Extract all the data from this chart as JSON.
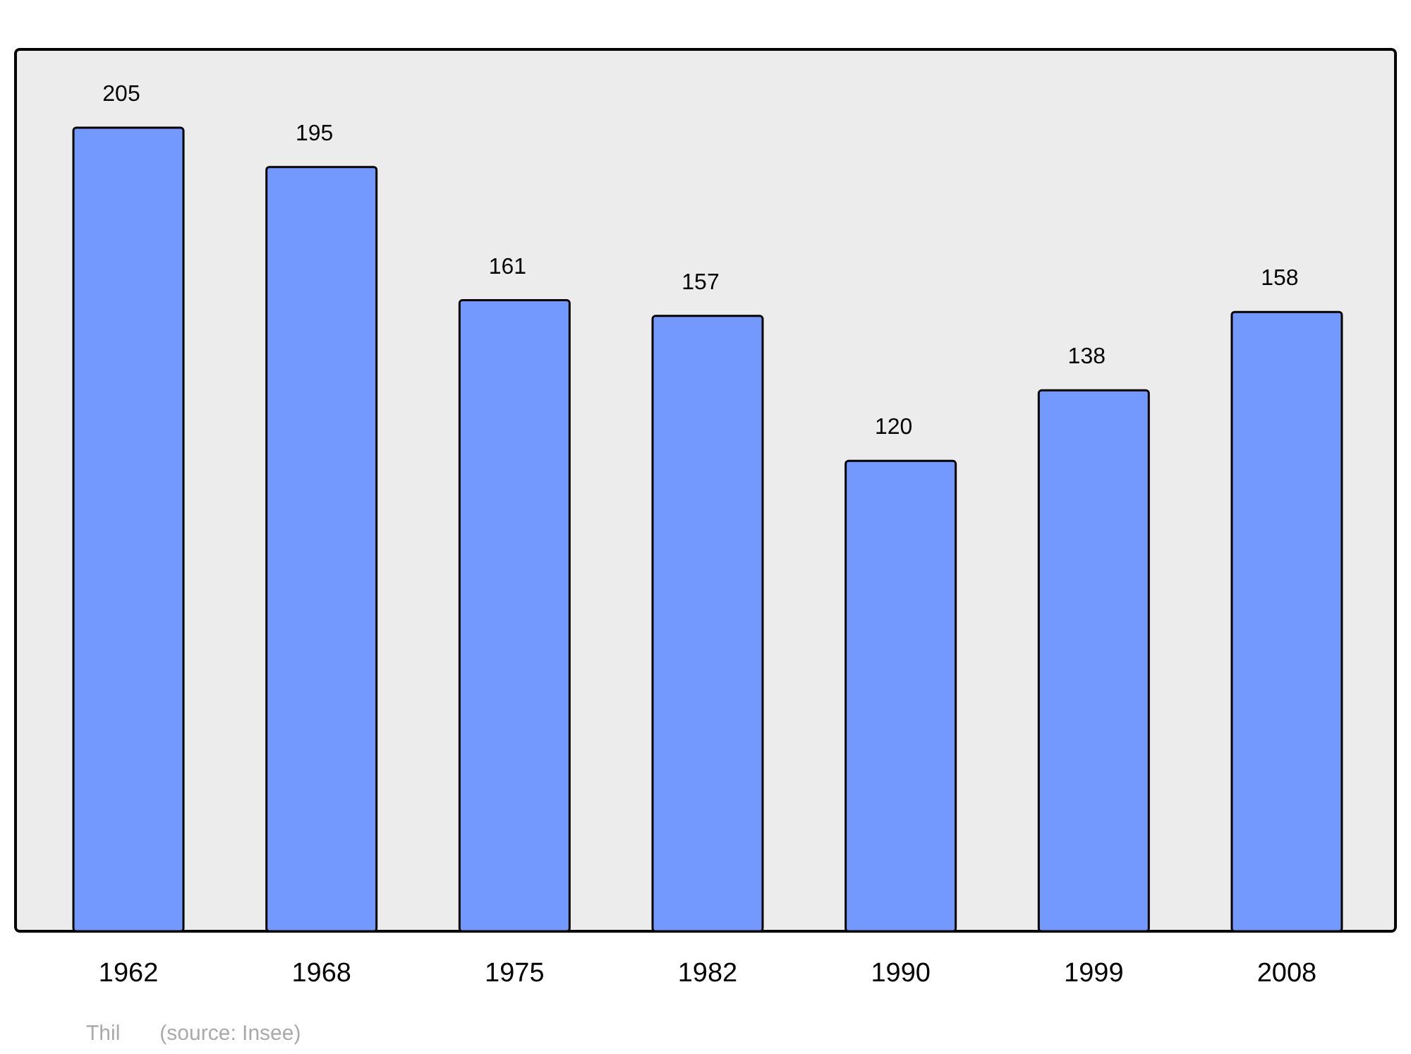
{
  "chart_data": {
    "type": "bar",
    "categories": [
      "1962",
      "1968",
      "1975",
      "1982",
      "1990",
      "1999",
      "2008"
    ],
    "values": [
      205,
      195,
      161,
      157,
      120,
      138,
      158
    ],
    "color": "#7399ff",
    "ylim": [
      0,
      225
    ],
    "data_labels": true,
    "tick_labels": "x",
    "annotations": [
      "Thil",
      "(source: Insee)"
    ]
  }
}
